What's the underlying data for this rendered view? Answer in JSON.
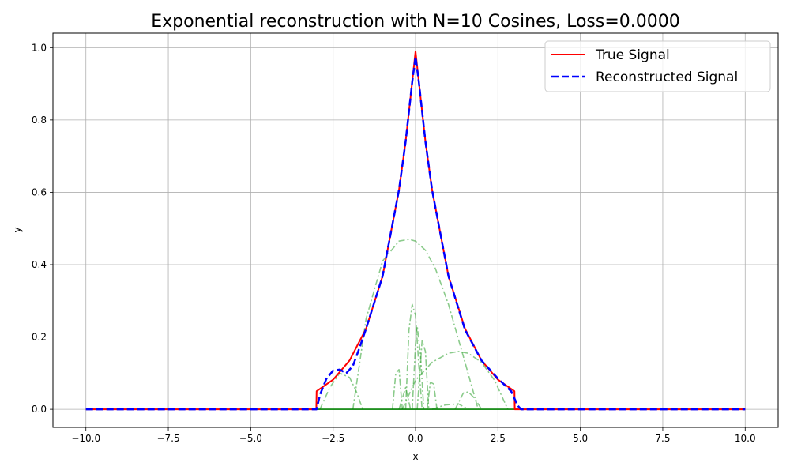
{
  "chart_data": {
    "type": "line",
    "title": "Exponential reconstruction with N=10 Cosines, Loss=0.0000",
    "xlabel": "x",
    "ylabel": "y",
    "xlim": [
      -11.0,
      11.0
    ],
    "ylim": [
      -0.05,
      1.04
    ],
    "grid": true,
    "legend": {
      "placement": "top-right"
    },
    "x_ticks": [
      -10,
      -7.5,
      -5,
      -2.5,
      0,
      2.5,
      5,
      7.5,
      10
    ],
    "x_tick_labels": [
      "−10.0",
      "−7.5",
      "−5.0",
      "−2.5",
      "0.0",
      "2.5",
      "5.0",
      "7.5",
      "10.0"
    ],
    "y_ticks": [
      0,
      0.2,
      0.4,
      0.6,
      0.8,
      1.0
    ],
    "y_tick_labels": [
      "0.0",
      "0.2",
      "0.4",
      "0.6",
      "0.8",
      "1.0"
    ],
    "series": [
      {
        "name": "True Signal",
        "style": "solid",
        "color": "#ff0000",
        "legend": true,
        "x": [
          -10,
          -3.01,
          -3.0,
          -2.5,
          -2.0,
          -1.5,
          -1.0,
          -0.5,
          -0.3,
          -0.1,
          0.0,
          0.1,
          0.3,
          0.5,
          1.0,
          1.5,
          2.0,
          2.5,
          3.0,
          3.01,
          10
        ],
        "y": [
          0,
          0,
          0.05,
          0.082,
          0.135,
          0.223,
          0.368,
          0.607,
          0.741,
          0.905,
          0.99,
          0.905,
          0.741,
          0.607,
          0.368,
          0.223,
          0.135,
          0.082,
          0.05,
          0,
          0
        ]
      },
      {
        "name": "Reconstructed Signal",
        "style": "dashed",
        "color": "#0000ff",
        "legend": true,
        "x": [
          -10,
          -3.0,
          -2.9,
          -2.7,
          -2.5,
          -2.3,
          -2.1,
          -1.9,
          -1.7,
          -1.5,
          -1.0,
          -0.5,
          -0.3,
          -0.1,
          0.0,
          0.1,
          0.3,
          0.5,
          1.0,
          1.5,
          2.0,
          2.5,
          2.9,
          3.1,
          3.2,
          10
        ],
        "y": [
          0,
          0,
          0.04,
          0.085,
          0.107,
          0.11,
          0.1,
          0.12,
          0.17,
          0.223,
          0.368,
          0.607,
          0.741,
          0.905,
          0.975,
          0.905,
          0.741,
          0.607,
          0.368,
          0.22,
          0.135,
          0.085,
          0.05,
          0.01,
          0,
          0
        ]
      },
      {
        "name": "",
        "style": "dashdot",
        "color": "#2ca02c",
        "legend": false,
        "x": [
          -1.9,
          -1.5,
          -1.0,
          -0.5,
          -0.2,
          0.0,
          0.3,
          0.6,
          1.0,
          1.5,
          1.9
        ],
        "y": [
          0,
          0.25,
          0.41,
          0.465,
          0.47,
          0.465,
          0.44,
          0.39,
          0.29,
          0.13,
          0
        ]
      },
      {
        "name": "",
        "style": "dashdot",
        "color": "#2ca02c",
        "legend": false,
        "x": [
          -2.9,
          -2.6,
          -2.3,
          -2.0,
          -1.8,
          -1.6
        ],
        "y": [
          0,
          0.06,
          0.1,
          0.088,
          0.05,
          0
        ]
      },
      {
        "name": "",
        "style": "dashdot",
        "color": "#2ca02c",
        "legend": false,
        "x": [
          -0.3,
          -0.2,
          -0.1,
          0.0,
          0.1,
          0.2
        ],
        "y": [
          0,
          0.22,
          0.29,
          0.26,
          0.12,
          0
        ]
      },
      {
        "name": "",
        "style": "dashdot",
        "color": "#2ca02c",
        "legend": false,
        "x": [
          -0.1,
          0.0,
          0.05,
          0.15,
          0.25
        ],
        "y": [
          0,
          0.18,
          0.23,
          0.15,
          0
        ]
      },
      {
        "name": "",
        "style": "dashdot",
        "color": "#2ca02c",
        "legend": false,
        "x": [
          0.05,
          0.2,
          0.3,
          0.4
        ],
        "y": [
          0,
          0.19,
          0.16,
          0
        ]
      },
      {
        "name": "",
        "style": "dashdot",
        "color": "#2ca02c",
        "legend": false,
        "x": [
          -0.7,
          -0.6,
          -0.5,
          -0.4
        ],
        "y": [
          0,
          0.1,
          0.11,
          0
        ]
      },
      {
        "name": "",
        "style": "dashdot",
        "color": "#2ca02c",
        "legend": false,
        "x": [
          -0.5,
          -0.3,
          -0.15
        ],
        "y": [
          0,
          0.06,
          0
        ]
      },
      {
        "name": "",
        "style": "dashdot",
        "color": "#2ca02c",
        "legend": false,
        "x": [
          -0.4,
          0.0,
          0.5,
          1.0,
          1.3,
          1.6,
          2.0,
          2.4,
          2.8
        ],
        "y": [
          0,
          0.08,
          0.13,
          0.155,
          0.16,
          0.155,
          0.13,
          0.08,
          0
        ]
      },
      {
        "name": "",
        "style": "dashdot",
        "color": "#2ca02c",
        "legend": false,
        "x": [
          0.35,
          0.45,
          0.55,
          0.65
        ],
        "y": [
          0,
          0.075,
          0.07,
          0
        ]
      },
      {
        "name": "",
        "style": "dashdot",
        "color": "#2ca02c",
        "legend": false,
        "x": [
          1.2,
          1.45,
          1.6,
          1.8,
          2.0
        ],
        "y": [
          0,
          0.045,
          0.048,
          0.03,
          0
        ]
      },
      {
        "name": "",
        "style": "dashdot",
        "color": "#2ca02c",
        "legend": false,
        "x": [
          0.5,
          0.9,
          1.3,
          1.6
        ],
        "y": [
          0,
          0.012,
          0.015,
          0
        ]
      },
      {
        "name": "",
        "style": "solid",
        "color": "#008000",
        "legend": false,
        "x": [
          -10,
          10
        ],
        "y": [
          0,
          0
        ]
      }
    ]
  }
}
